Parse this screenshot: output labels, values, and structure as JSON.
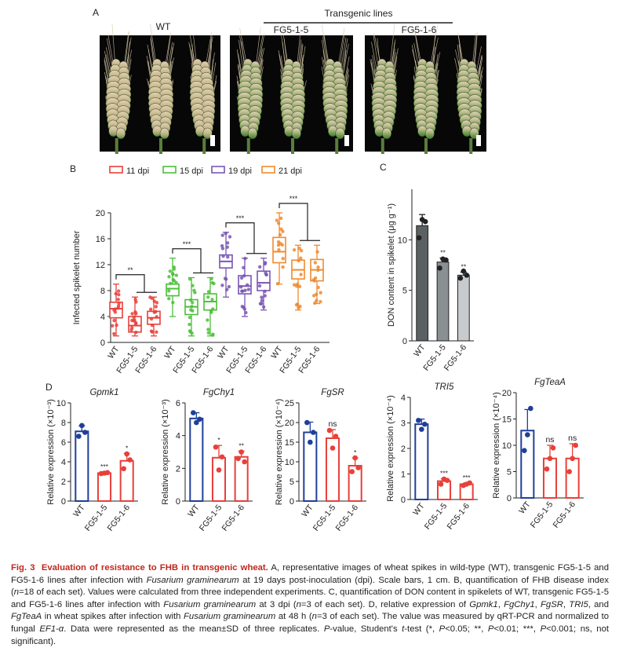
{
  "panelA": {
    "letter": "A",
    "wt_label": "WT",
    "transgenic_label": "Transgenic lines",
    "line1_label": "FG5-1-5",
    "line2_label": "FG5-1-6"
  },
  "panelB": {
    "letter": "B",
    "legend": [
      "11 dpi",
      "15 dpi",
      "19 dpi",
      "21 dpi"
    ],
    "ylabel": "Infected spikelet number",
    "sig": [
      "**",
      "***",
      "***",
      "***"
    ]
  },
  "panelC": {
    "letter": "C"
  },
  "panelD": {
    "letter": "D"
  },
  "colors": {
    "c11": "#e8403a",
    "c15": "#4cbf3a",
    "c19": "#7a55b5",
    "c21": "#f08a2e",
    "wt_bar": "#1f3f9a",
    "tg_bar": "#e8403a",
    "caption_red": "#c0281f"
  },
  "chart_data": [
    {
      "type": "box",
      "panel": "B",
      "ylabel": "Infected spikelet number",
      "ylim": [
        0,
        20
      ],
      "yticks": [
        0,
        4,
        8,
        12,
        16,
        20
      ],
      "categories": [
        "WT",
        "FG5-1-5",
        "FG5-1-6"
      ],
      "groups": [
        {
          "name": "11 dpi",
          "sig": "**",
          "boxes": [
            {
              "min": 1,
              "q1": 3.8,
              "median": 5.2,
              "q3": 6.2,
              "max": 9
            },
            {
              "min": 1,
              "q1": 1.6,
              "median": 2.6,
              "q3": 4.0,
              "max": 7
            },
            {
              "min": 1,
              "q1": 2.8,
              "median": 3.8,
              "q3": 4.8,
              "max": 7
            }
          ]
        },
        {
          "name": "15 dpi",
          "sig": "***",
          "boxes": [
            {
              "min": 4,
              "q1": 7.2,
              "median": 8.3,
              "q3": 9.0,
              "max": 13
            },
            {
              "min": 1,
              "q1": 4.3,
              "median": 5.5,
              "q3": 6.6,
              "max": 10
            },
            {
              "min": 1,
              "q1": 5.0,
              "median": 6.3,
              "q3": 7.5,
              "max": 10
            }
          ]
        },
        {
          "name": "19 dpi",
          "sig": "***",
          "boxes": [
            {
              "min": 7,
              "q1": 11.5,
              "median": 12.5,
              "q3": 13.5,
              "max": 17
            },
            {
              "min": 4,
              "q1": 7.5,
              "median": 8.7,
              "q3": 10.3,
              "max": 13
            },
            {
              "min": 5,
              "q1": 8.0,
              "median": 9.2,
              "q3": 11.0,
              "max": 13
            }
          ]
        },
        {
          "name": "21 dpi",
          "sig": "***",
          "boxes": [
            {
              "min": 9,
              "q1": 12.3,
              "median": 14.0,
              "q3": 16.2,
              "max": 20
            },
            {
              "min": 5,
              "q1": 9.8,
              "median": 11.2,
              "q3": 12.7,
              "max": 15
            },
            {
              "min": 6,
              "q1": 9.5,
              "median": 11.2,
              "q3": 12.8,
              "max": 15
            }
          ]
        }
      ]
    },
    {
      "type": "bar",
      "panel": "C",
      "ylabel": "DON content in spikelet (μg g⁻¹)",
      "categories": [
        "WT",
        "FG5-1-5",
        "FG5-1-6"
      ],
      "values": [
        11.4,
        7.8,
        6.5
      ],
      "errors": [
        1.1,
        0.4,
        0.3
      ],
      "sig": [
        "",
        "**",
        "**"
      ],
      "points": [
        [
          10.2,
          12.0,
          11.8
        ],
        [
          7.2,
          8.1,
          8.0
        ],
        [
          6.2,
          6.9,
          6.5
        ]
      ],
      "ylim": [
        0,
        15
      ],
      "yticks": [
        0,
        5,
        10
      ],
      "colors": [
        "#5b6063",
        "#8a8f92",
        "#c7cbcd"
      ]
    },
    {
      "type": "bar",
      "panel": "D",
      "title": "Gpmk1",
      "ylabel": "Relative expression (×10⁻³)",
      "categories": [
        "WT",
        "FG5-1-5",
        "FG5-1-6"
      ],
      "values": [
        7.1,
        2.85,
        4.1
      ],
      "errors": [
        0.55,
        0.1,
        0.75
      ],
      "points": [
        [
          6.6,
          7.7,
          7.0
        ],
        [
          2.8,
          2.85,
          2.9
        ],
        [
          3.3,
          4.8,
          4.2
        ]
      ],
      "sig": [
        "",
        "***",
        "*"
      ],
      "ylim": [
        0,
        10
      ],
      "yticks": [
        0,
        2,
        4,
        6,
        8,
        10
      ]
    },
    {
      "type": "bar",
      "panel": "D",
      "title": "FgChy1",
      "ylabel": "Relative expression (×10⁻³)",
      "categories": [
        "WT",
        "FG5-1-5",
        "FG5-1-6"
      ],
      "values": [
        5.05,
        2.65,
        2.7
      ],
      "errors": [
        0.35,
        0.75,
        0.35
      ],
      "points": [
        [
          5.4,
          4.8,
          5.0
        ],
        [
          3.3,
          1.9,
          2.7
        ],
        [
          2.6,
          3.0,
          2.4
        ]
      ],
      "sig": [
        "",
        "*",
        "**"
      ],
      "ylim": [
        0,
        6
      ],
      "yticks": [
        0,
        2,
        4,
        6
      ]
    },
    {
      "type": "bar",
      "panel": "D",
      "title": "FgSR",
      "ylabel": "Relative expression (×10⁻⁴)",
      "categories": [
        "WT",
        "FG5-1-5",
        "FG5-1-6"
      ],
      "values": [
        17.5,
        16.0,
        9.0
      ],
      "errors": [
        2.6,
        2.2,
        2.0
      ],
      "points": [
        [
          20.0,
          15.0,
          17.5
        ],
        [
          18.0,
          13.5,
          16.5
        ],
        [
          7.5,
          11.0,
          8.5
        ]
      ],
      "sig": [
        "",
        "ns",
        "*"
      ],
      "ylim": [
        0,
        25
      ],
      "yticks": [
        0,
        5,
        10,
        15,
        20,
        25
      ]
    },
    {
      "type": "bar",
      "panel": "D",
      "title": "TRI5",
      "ylabel": "Relative expression (×10⁻⁴)",
      "categories": [
        "WT",
        "FG5-1-5",
        "FG5-1-6"
      ],
      "values": [
        2.95,
        0.72,
        0.6
      ],
      "errors": [
        0.2,
        0.1,
        0.05
      ],
      "points": [
        [
          3.1,
          2.75,
          2.95
        ],
        [
          0.6,
          0.8,
          0.75
        ],
        [
          0.55,
          0.6,
          0.65
        ]
      ],
      "sig": [
        "",
        "***",
        "***"
      ],
      "ylim": [
        0,
        4
      ],
      "yticks": [
        0,
        1,
        2,
        3,
        4
      ]
    },
    {
      "type": "bar",
      "panel": "D",
      "title": "FgTeaA",
      "ylabel": "Relative expression (×10⁻⁴)",
      "categories": [
        "WT",
        "FG5-1-5",
        "FG5-1-6"
      ],
      "values": [
        12.8,
        7.5,
        7.5
      ],
      "errors": [
        4.0,
        2.5,
        2.8
      ],
      "points": [
        [
          9.0,
          12.0,
          17.0
        ],
        [
          5.5,
          7.5,
          9.5
        ],
        [
          5.0,
          7.5,
          10.0
        ]
      ],
      "sig": [
        "",
        "ns",
        "ns"
      ],
      "ylim": [
        0,
        20
      ],
      "yticks": [
        0,
        5,
        10,
        15,
        20
      ]
    }
  ]
}
